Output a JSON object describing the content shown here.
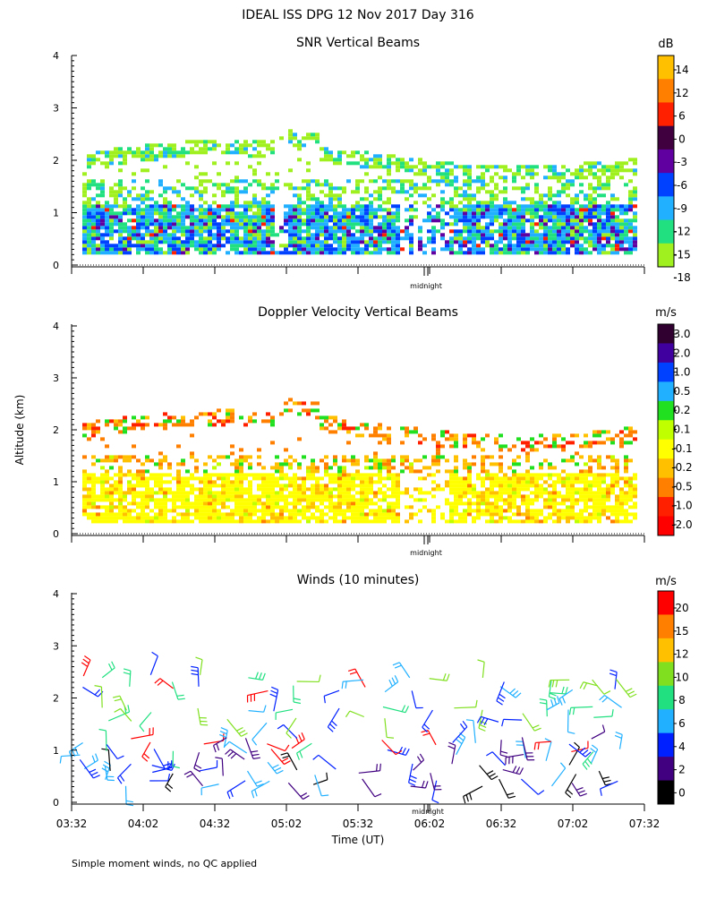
{
  "title": "IDEAL ISS DPG  12 Nov 2017 Day 316",
  "ylabel": "Altitude (km)",
  "xlabel": "Time (UT)",
  "midnight_label": "midnight",
  "footnote": "Simple moment winds, no QC applied",
  "chart_data": [
    {
      "type": "heatmap",
      "title": "SNR Vertical Beams",
      "unit": "dB",
      "ylim": [
        0,
        4
      ],
      "y_ticks": [
        "0",
        "1",
        "2",
        "3",
        "4"
      ],
      "colorbar": {
        "labels": [
          "14",
          "12",
          "6",
          "0",
          "-3",
          "-6",
          "-9",
          "-12",
          "-15",
          "-18"
        ],
        "colors": [
          "#ffc000",
          "#ff8000",
          "#ff2000",
          "#400040",
          "#6000a0",
          "#0040ff",
          "#20b0ff",
          "#20e080",
          "#a0f020"
        ]
      }
    },
    {
      "type": "heatmap",
      "title": "Doppler Velocity Vertical Beams",
      "unit": "m/s",
      "ylim": [
        0,
        4
      ],
      "y_ticks": [
        "0",
        "1",
        "2",
        "3",
        "4"
      ],
      "colorbar": {
        "labels": [
          "3.0",
          "2.0",
          "1.0",
          "0.5",
          "0.2",
          "0.1",
          "-0.1",
          "-0.2",
          "-0.5",
          "-1.0",
          "-2.0"
        ],
        "colors": [
          "#300030",
          "#4000a0",
          "#0040ff",
          "#20b0ff",
          "#20e020",
          "#c0ff00",
          "#ffff00",
          "#ffc000",
          "#ff8000",
          "#ff2000",
          "#ff0000"
        ]
      }
    },
    {
      "type": "scatter",
      "title": "Winds (10 minutes)",
      "unit": "m/s",
      "ylim": [
        0,
        4
      ],
      "y_ticks": [
        "0",
        "1",
        "2",
        "3",
        "4"
      ],
      "x_ticks": [
        "03:32",
        "04:02",
        "04:32",
        "05:02",
        "05:32",
        "06:02",
        "06:32",
        "07:02",
        "07:32"
      ],
      "colorbar": {
        "labels": [
          "20",
          "15",
          "12",
          "10",
          "8",
          "6",
          "4",
          "2",
          "0"
        ],
        "colors": [
          "#ff0000",
          "#ff8000",
          "#ffc000",
          "#80e020",
          "#20e080",
          "#20b0ff",
          "#0020ff",
          "#400080",
          "#000000"
        ]
      }
    }
  ]
}
